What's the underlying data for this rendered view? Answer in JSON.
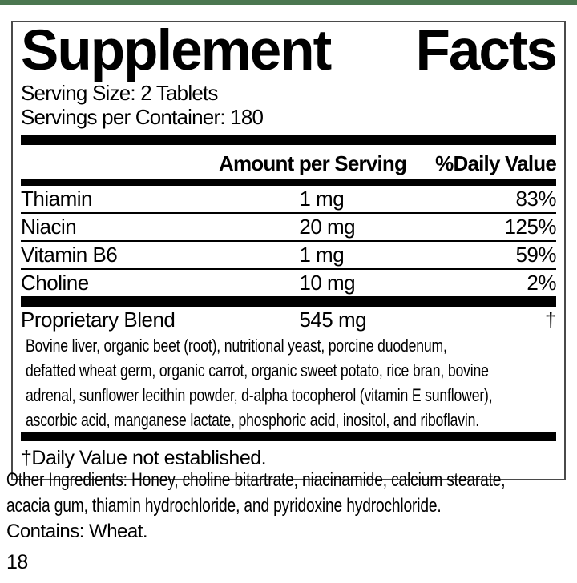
{
  "colors": {
    "accent_green": "#4b7750",
    "panel_border": "#4a4a4a",
    "divider": "#000000",
    "text": "#000000",
    "background": "#ffffff"
  },
  "panel": {
    "title_left": "Supplement",
    "title_right": "Facts",
    "serving_size": "Serving Size: 2 Tablets",
    "servings_per_container": "Servings per Container: 180",
    "columns": {
      "amount_per_serving": "Amount per Serving",
      "daily_value": "%Daily Value"
    },
    "nutrients": [
      {
        "name": "Thiamin",
        "amount": "1 mg",
        "daily_value": "83%"
      },
      {
        "name": "Niacin",
        "amount": "20 mg",
        "daily_value": "125%"
      },
      {
        "name": "Vitamin B6",
        "amount": "1 mg",
        "daily_value": "59%"
      },
      {
        "name": "Choline",
        "amount": "10 mg",
        "daily_value": "2%"
      }
    ],
    "proprietary_blend": {
      "name": "Proprietary Blend",
      "amount": "545 mg",
      "daily_value": "†",
      "description_lines": [
        "Bovine liver, organic beet (root), nutritional yeast, porcine duodenum,",
        "defatted wheat germ, organic carrot, organic sweet potato, rice bran, bovine",
        "adrenal, sunflower lecithin powder, d-alpha tocopherol (vitamin E sunflower),",
        "ascorbic acid, manganese lactate, phosphoric acid, inositol, and riboflavin."
      ]
    },
    "footnote": "†Daily Value not established."
  },
  "footer": {
    "other_ingredients_lines": [
      "Other Ingredients: Honey, choline bitartrate, niacinamide, calcium stearate,",
      "acacia gum, thiamin hydrochloride, and pyridoxine hydrochloride."
    ],
    "contains": "Contains: Wheat.",
    "page_number": "18"
  }
}
